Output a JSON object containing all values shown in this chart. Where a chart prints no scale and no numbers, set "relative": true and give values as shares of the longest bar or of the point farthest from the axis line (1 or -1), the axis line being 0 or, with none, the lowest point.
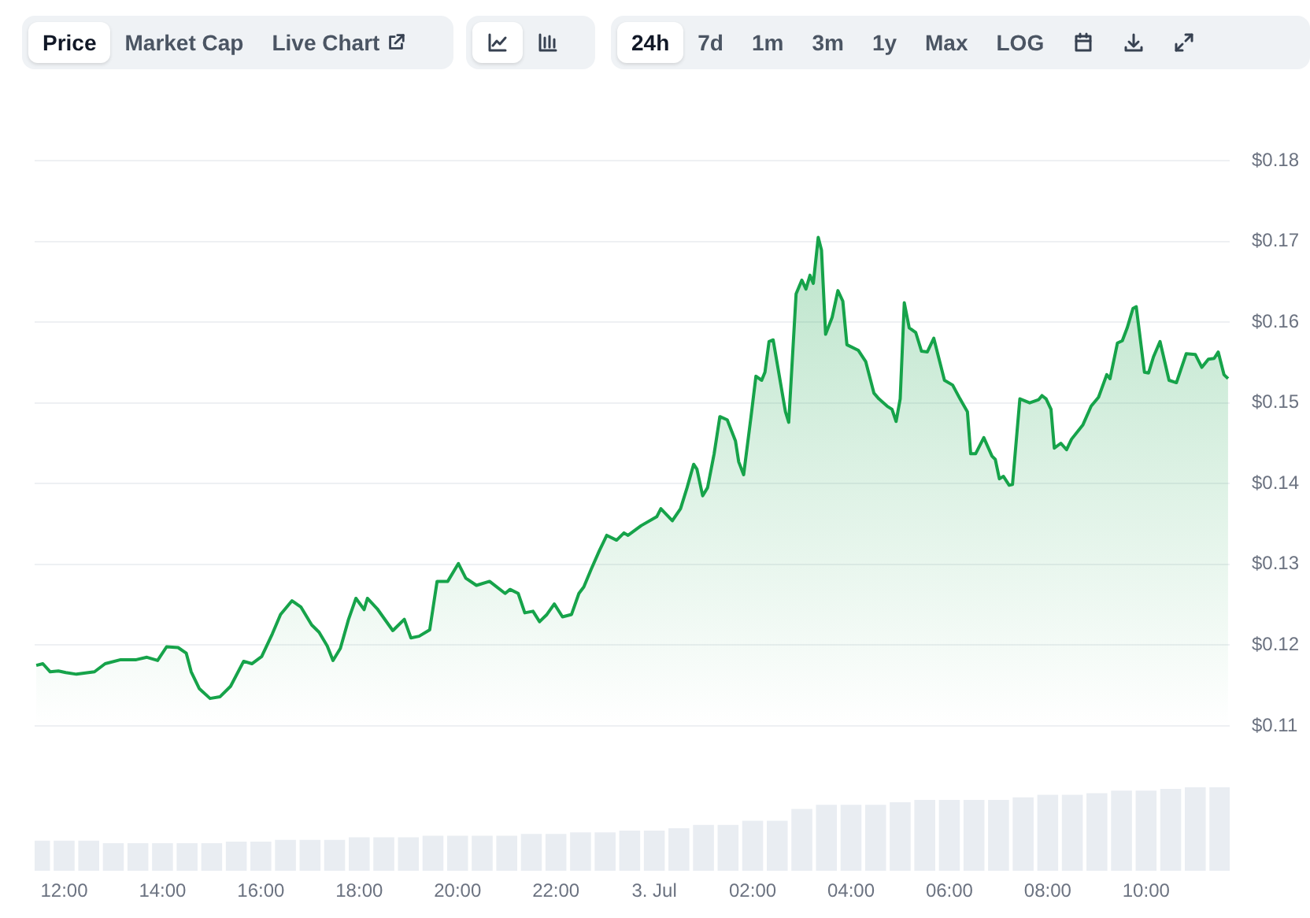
{
  "chart_data": [
    {
      "type": "area",
      "color": "#16a34a",
      "xlim": [
        "--07-02T11:24",
        "--07-03T11:42"
      ],
      "ylim": [
        0.11,
        0.18
      ],
      "yticks": [
        {
          "value": 0.11,
          "label": "$0.11"
        },
        {
          "value": 0.12,
          "label": "$0.12"
        },
        {
          "value": 0.13,
          "label": "$0.13"
        },
        {
          "value": 0.14,
          "label": "$0.14"
        },
        {
          "value": 0.15,
          "label": "$0.15"
        },
        {
          "value": 0.16,
          "label": "$0.16"
        },
        {
          "value": 0.17,
          "label": "$0.17"
        },
        {
          "value": 0.18,
          "label": "$0.18"
        }
      ],
      "grid": "y",
      "tick_labels": "y",
      "annotations": [
        "Price",
        "Market Cap",
        "Live Chart",
        "24h",
        "7d",
        "1m",
        "3m",
        "1y",
        "Max",
        "LOG"
      ],
      "x": [
        "--07-02T11:26",
        "--07-02T11:34",
        "--07-02T11:43",
        "--07-02T11:53",
        "--07-02T12:02",
        "--07-02T12:15",
        "--07-02T12:37",
        "--07-02T12:50",
        "--07-02T13:09",
        "--07-02T13:28",
        "--07-02T13:41",
        "--07-02T13:54",
        "--07-02T14:05",
        "--07-02T14:19",
        "--07-02T14:29",
        "--07-02T14:35",
        "--07-02T14:45",
        "--07-02T14:58",
        "--07-02T15:10",
        "--07-02T15:23",
        "--07-02T15:39",
        "--07-02T15:49",
        "--07-02T16:01",
        "--07-02T16:14",
        "--07-02T16:24",
        "--07-02T16:38",
        "--07-02T16:49",
        "--07-02T17:02",
        "--07-02T17:11",
        "--07-02T17:21",
        "--07-02T17:28",
        "--07-02T17:37",
        "--07-02T17:47",
        "--07-02T17:56",
        "--07-02T18:06",
        "--07-02T18:10",
        "--07-02T18:22",
        "--07-02T18:41",
        "--07-02T18:55",
        "--07-02T19:03",
        "--07-02T19:13",
        "--07-02T19:26",
        "--07-02T19:35",
        "--07-02T19:48",
        "--07-02T20:01",
        "--07-02T20:10",
        "--07-02T20:23",
        "--07-02T20:39",
        "--07-02T20:58",
        "--07-02T21:04",
        "--07-02T21:14",
        "--07-02T21:22",
        "--07-02T21:32",
        "--07-02T21:40",
        "--07-02T21:49",
        "--07-02T21:58",
        "--07-02T22:08",
        "--07-02T22:19",
        "--07-02T22:28",
        "--07-02T22:34",
        "--07-02T22:43",
        "--07-02T22:53",
        "--07-02T23:02",
        "--07-02T23:14",
        "--07-02T23:23",
        "--07-02T23:28",
        "--07-02T23:44",
        "--07-03T00:03",
        "--07-03T00:08",
        "--07-03T00:22",
        "--07-03T00:32",
        "--07-03T00:40",
        "--07-03T00:48",
        "--07-03T00:52",
        "--07-03T00:59",
        "--07-03T01:05",
        "--07-03T01:13",
        "--07-03T01:20",
        "--07-03T01:29",
        "--07-03T01:39",
        "--07-03T01:43",
        "--07-03T01:49",
        "--07-03T01:58",
        "--07-03T02:04",
        "--07-03T02:11",
        "--07-03T02:15",
        "--07-03T02:20",
        "--07-03T02:25",
        "--07-03T02:40",
        "--07-03T02:44",
        "--07-03T02:53",
        "--07-03T03:00",
        "--07-03T03:05",
        "--07-03T03:10",
        "--07-03T03:14",
        "--07-03T03:20",
        "--07-03T03:24",
        "--07-03T03:29",
        "--07-03T03:37",
        "--07-03T03:44",
        "--07-03T03:50",
        "--07-03T03:55",
        "--07-03T04:09",
        "--07-03T04:18",
        "--07-03T04:28",
        "--07-03T04:34",
        "--07-03T04:44",
        "--07-03T04:50",
        "--07-03T04:55",
        "--07-03T05:00",
        "--07-03T05:05",
        "--07-03T05:11",
        "--07-03T05:19",
        "--07-03T05:26",
        "--07-03T05:33",
        "--07-03T05:41",
        "--07-03T05:54",
        "--07-03T06:04",
        "--07-03T06:13",
        "--07-03T06:22",
        "--07-03T06:26",
        "--07-03T06:32",
        "--07-03T06:42",
        "--07-03T06:52",
        "--07-03T06:56",
        "--07-03T07:01",
        "--07-03T07:06",
        "--07-03T07:13",
        "--07-03T07:17",
        "--07-03T07:26",
        "--07-03T07:38",
        "--07-03T07:49",
        "--07-03T07:53",
        "--07-03T07:58",
        "--07-03T08:04",
        "--07-03T08:08",
        "--07-03T08:16",
        "--07-03T08:23",
        "--07-03T08:29",
        "--07-03T08:43",
        "--07-03T08:53",
        "--07-03T09:02",
        "--07-03T09:12",
        "--07-03T09:16",
        "--07-03T09:25",
        "--07-03T09:31",
        "--07-03T09:37",
        "--07-03T09:44",
        "--07-03T09:48",
        "--07-03T09:58",
        "--07-03T10:03",
        "--07-03T10:09",
        "--07-03T10:17",
        "--07-03T10:28",
        "--07-03T10:37",
        "--07-03T10:49",
        "--07-03T11:00",
        "--07-03T11:08",
        "--07-03T11:16",
        "--07-03T11:23",
        "--07-03T11:28",
        "--07-03T11:35",
        "--07-03T11:40"
      ],
      "values": [
        0.1175,
        0.1177,
        0.1167,
        0.1168,
        0.1166,
        0.1164,
        0.1167,
        0.1177,
        0.1182,
        0.1182,
        0.1185,
        0.1181,
        0.1198,
        0.1197,
        0.119,
        0.1167,
        0.1146,
        0.1134,
        0.1136,
        0.1149,
        0.118,
        0.1177,
        0.1186,
        0.1214,
        0.1238,
        0.1255,
        0.1247,
        0.1225,
        0.1216,
        0.1199,
        0.1181,
        0.1196,
        0.1232,
        0.1258,
        0.1244,
        0.1258,
        0.1245,
        0.1218,
        0.1232,
        0.1209,
        0.1211,
        0.1219,
        0.1279,
        0.1279,
        0.1301,
        0.1283,
        0.1274,
        0.1279,
        0.1264,
        0.1269,
        0.1264,
        0.124,
        0.1242,
        0.1229,
        0.1238,
        0.1251,
        0.1235,
        0.1238,
        0.1264,
        0.1272,
        0.1294,
        0.1317,
        0.1336,
        0.133,
        0.1339,
        0.1336,
        0.1348,
        0.1359,
        0.1369,
        0.1354,
        0.1369,
        0.1395,
        0.1424,
        0.1418,
        0.1385,
        0.1395,
        0.1437,
        0.1483,
        0.1479,
        0.1453,
        0.1427,
        0.1411,
        0.1483,
        0.1533,
        0.1528,
        0.1538,
        0.1576,
        0.1578,
        0.1489,
        0.1476,
        0.1635,
        0.1652,
        0.1641,
        0.1658,
        0.1648,
        0.1705,
        0.1689,
        0.1585,
        0.1606,
        0.1639,
        0.1626,
        0.1572,
        0.1565,
        0.1551,
        0.1512,
        0.1505,
        0.1496,
        0.1492,
        0.1477,
        0.1505,
        0.1624,
        0.1593,
        0.1587,
        0.1564,
        0.1563,
        0.158,
        0.1528,
        0.1522,
        0.1505,
        0.1489,
        0.1437,
        0.1437,
        0.1457,
        0.1434,
        0.143,
        0.1406,
        0.1409,
        0.1398,
        0.1399,
        0.1505,
        0.15,
        0.1504,
        0.1509,
        0.1505,
        0.1492,
        0.1444,
        0.145,
        0.1442,
        0.1455,
        0.1473,
        0.1496,
        0.1507,
        0.1535,
        0.153,
        0.1574,
        0.1577,
        0.1593,
        0.1617,
        0.1619,
        0.1538,
        0.1537,
        0.1557,
        0.1576,
        0.1528,
        0.1525,
        0.1561,
        0.156,
        0.1544,
        0.1554,
        0.1555,
        0.1563,
        0.1535,
        0.153
      ]
    },
    {
      "type": "bar",
      "color": "#e9edf2",
      "relative": true,
      "xlim": [
        "--07-02T11:24",
        "--07-03T11:42"
      ],
      "xticks": [
        {
          "value": "--07-02T12:00",
          "label": "12:00"
        },
        {
          "value": "--07-02T14:00",
          "label": "14:00"
        },
        {
          "value": "--07-02T16:00",
          "label": "16:00"
        },
        {
          "value": "--07-02T18:00",
          "label": "18:00"
        },
        {
          "value": "--07-02T20:00",
          "label": "20:00"
        },
        {
          "value": "--07-02T22:00",
          "label": "22:00"
        },
        {
          "value": "--07-03T00:00",
          "label": "3. Jul"
        },
        {
          "value": "--07-03T02:00",
          "label": "02:00"
        },
        {
          "value": "--07-03T04:00",
          "label": "04:00"
        },
        {
          "value": "--07-03T06:00",
          "label": "06:00"
        },
        {
          "value": "--07-03T08:00",
          "label": "08:00"
        },
        {
          "value": "--07-03T10:00",
          "label": "10:00"
        }
      ],
      "x": [
        "--07-02T11:30",
        "--07-02T12:00",
        "--07-02T12:30",
        "--07-02T13:00",
        "--07-02T13:30",
        "--07-02T14:00",
        "--07-02T14:30",
        "--07-02T15:00",
        "--07-02T15:30",
        "--07-02T16:00",
        "--07-02T16:30",
        "--07-02T17:00",
        "--07-02T17:30",
        "--07-02T18:00",
        "--07-02T18:30",
        "--07-02T19:00",
        "--07-02T19:30",
        "--07-02T20:00",
        "--07-02T20:30",
        "--07-02T21:00",
        "--07-02T21:30",
        "--07-02T22:00",
        "--07-02T22:30",
        "--07-02T23:00",
        "--07-02T23:30",
        "--07-03T00:00",
        "--07-03T00:30",
        "--07-03T01:00",
        "--07-03T01:30",
        "--07-03T02:00",
        "--07-03T02:30",
        "--07-03T03:00",
        "--07-03T03:30",
        "--07-03T04:00",
        "--07-03T04:30",
        "--07-03T05:00",
        "--07-03T05:30",
        "--07-03T06:00",
        "--07-03T06:30",
        "--07-03T07:00",
        "--07-03T07:30",
        "--07-03T08:00",
        "--07-03T08:30",
        "--07-03T09:00",
        "--07-03T09:30",
        "--07-03T10:00",
        "--07-03T10:30",
        "--07-03T11:00",
        "--07-03T11:30"
      ],
      "values": [
        0.36,
        0.36,
        0.36,
        0.33,
        0.33,
        0.33,
        0.33,
        0.33,
        0.35,
        0.35,
        0.37,
        0.37,
        0.37,
        0.4,
        0.4,
        0.4,
        0.42,
        0.42,
        0.42,
        0.42,
        0.44,
        0.44,
        0.46,
        0.46,
        0.48,
        0.48,
        0.51,
        0.55,
        0.55,
        0.6,
        0.6,
        0.74,
        0.79,
        0.79,
        0.79,
        0.82,
        0.85,
        0.85,
        0.85,
        0.85,
        0.88,
        0.91,
        0.91,
        0.93,
        0.96,
        0.96,
        0.98,
        1,
        1
      ]
    }
  ]
}
